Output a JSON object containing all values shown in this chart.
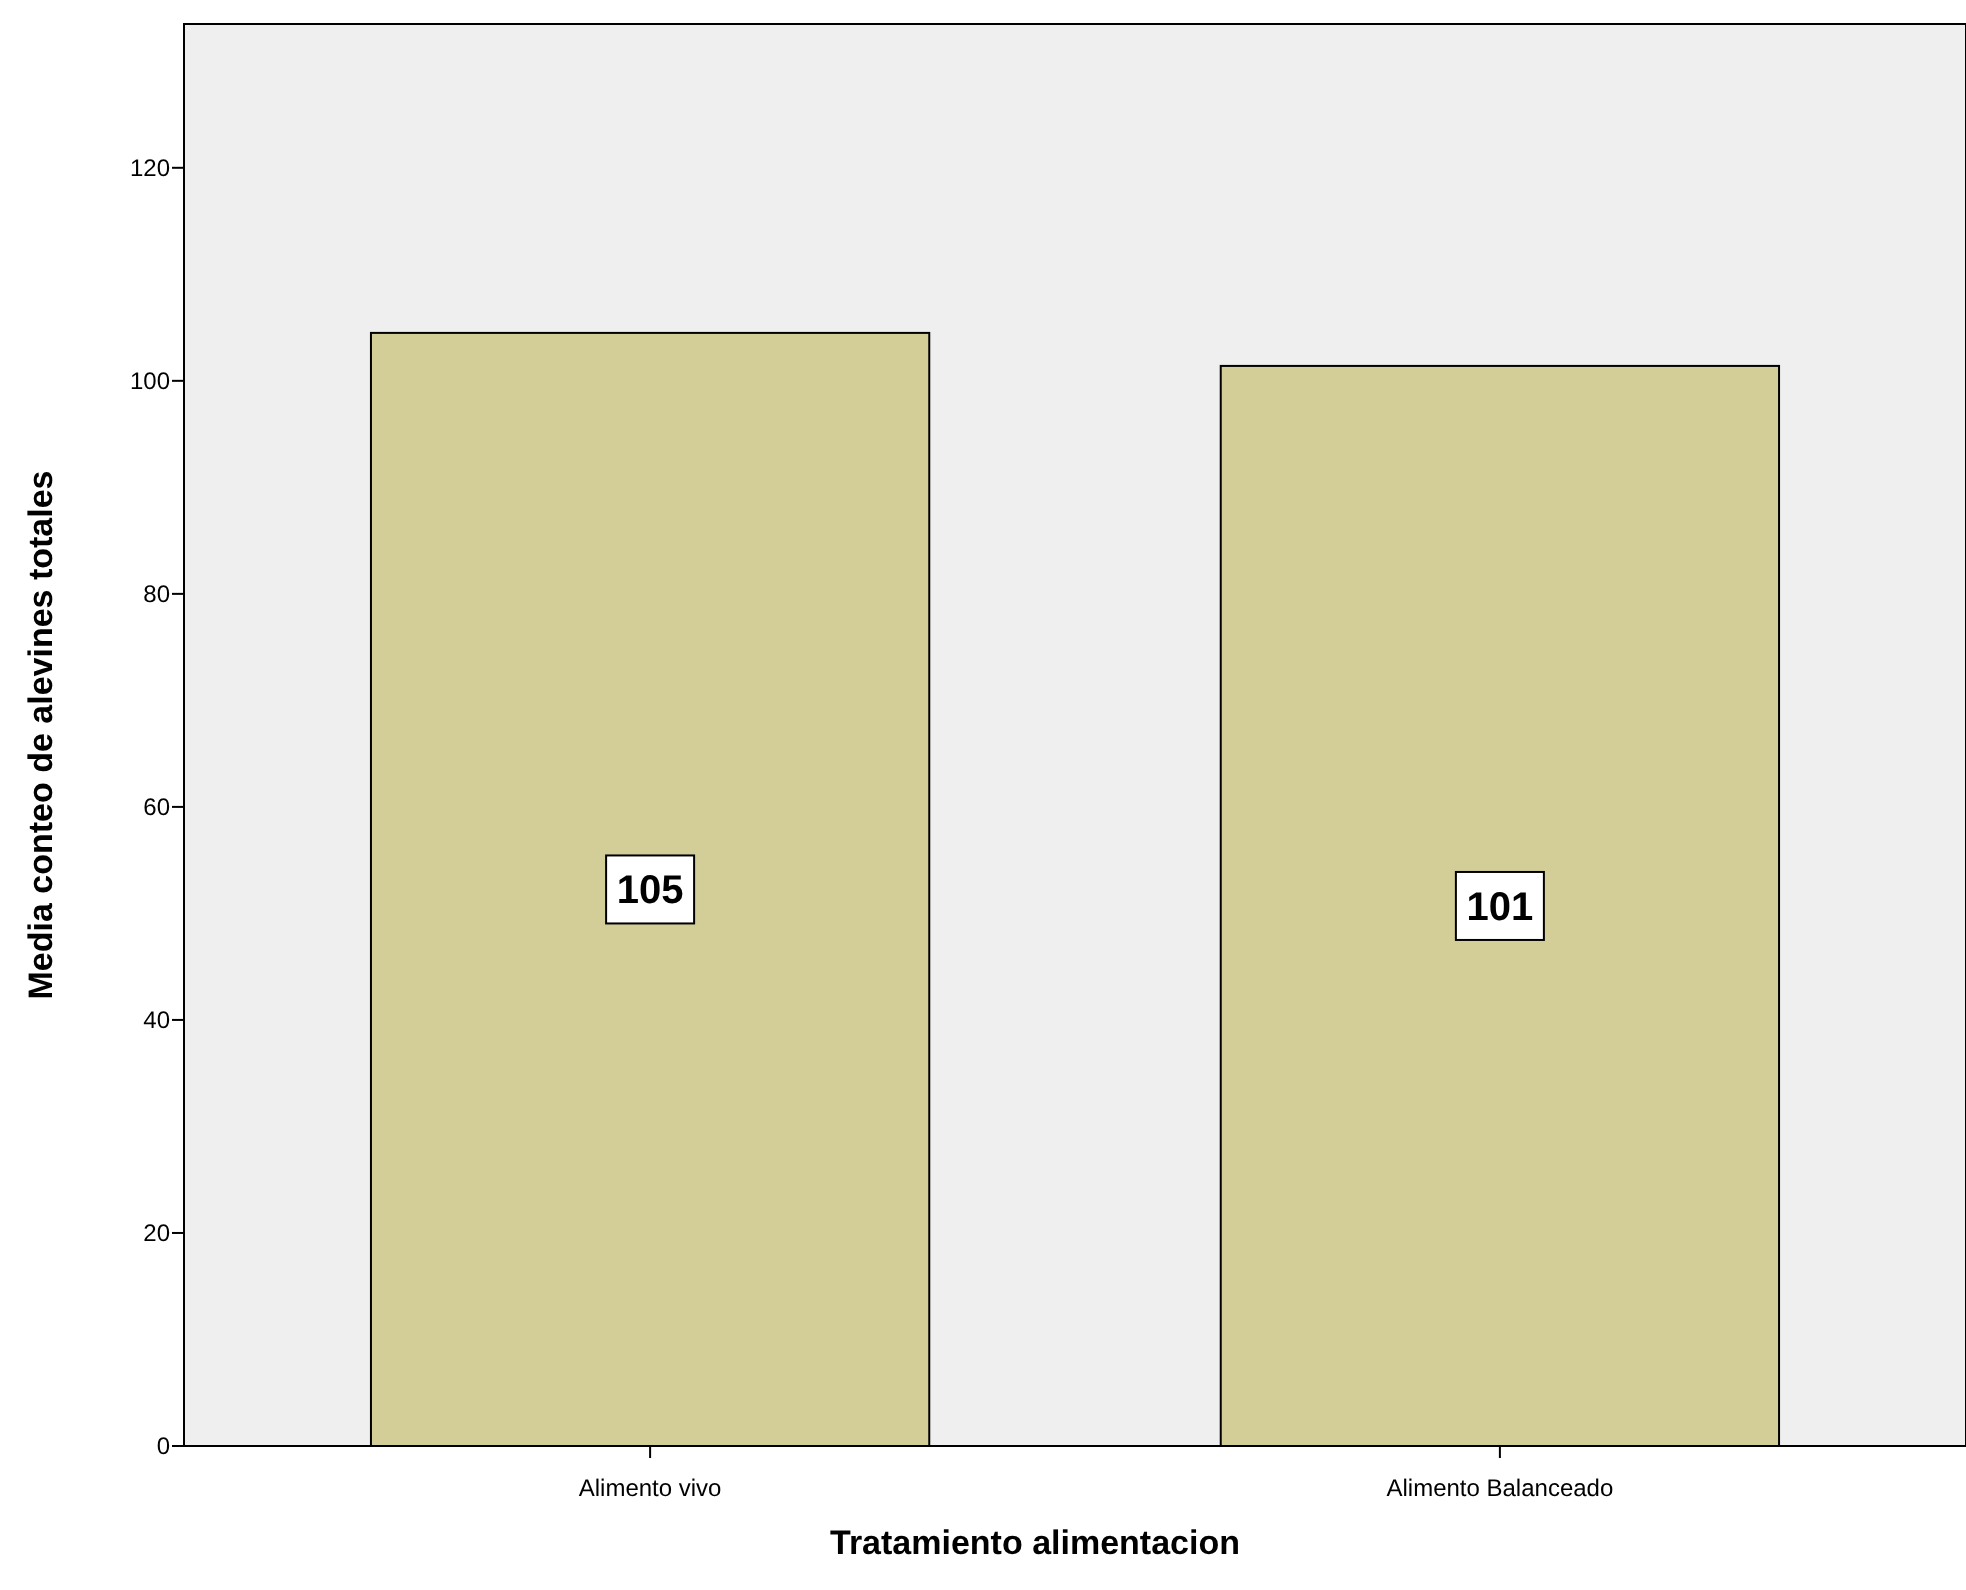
{
  "chart_data": {
    "type": "bar",
    "xlabel": "Tratamiento alimentacion",
    "ylabel": "Media conteo de alevines totales",
    "categories": [
      "Alimento vivo",
      "Alimento Balanceado"
    ],
    "values": [
      104.5,
      101.4
    ],
    "color": "#d3ce98",
    "value_labels": [
      "105",
      "101"
    ],
    "ylim": [
      0,
      133.5
    ],
    "yticks": [
      0,
      20,
      40,
      60,
      80,
      100,
      120
    ]
  }
}
